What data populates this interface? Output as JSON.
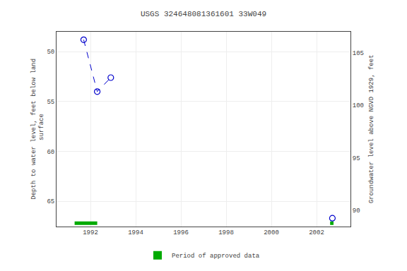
{
  "chart_data": {
    "type": "line",
    "title": "USGS 324648081361601 33W049",
    "ylabel": "Depth to water level, feet below land\n surface",
    "y2label": "Groundwater level above NGVD 1929, feet",
    "xlim": [
      1990.5,
      2003.5
    ],
    "xticks": [
      1992,
      1994,
      1996,
      1998,
      2000,
      2002
    ],
    "ylim": [
      67.5,
      48
    ],
    "yticks": [
      50,
      55,
      60,
      65
    ],
    "y2lim": [
      88.5,
      107
    ],
    "y2ticks": [
      90,
      95,
      100,
      105
    ],
    "grid": true,
    "series": [
      {
        "type": "line",
        "x": [
          1991.7,
          1992.3,
          1992.9
        ],
        "values": [
          48.8,
          54.0,
          52.6
        ],
        "color": "#0000cc",
        "line_style": "dashed",
        "marker": "open circle"
      },
      {
        "type": "scatter",
        "x": [
          2002.7
        ],
        "values": [
          66.7
        ],
        "color": "#0000cc",
        "marker": "open circle"
      },
      {
        "type": "bar",
        "name": "Period of approved data",
        "color": "#00aa00",
        "x_start": [
          1991.3,
          2002.6
        ],
        "x_end": [
          1992.3,
          2002.75
        ],
        "values": [
          67.2,
          67.2
        ],
        "height": 0.35
      }
    ]
  }
}
